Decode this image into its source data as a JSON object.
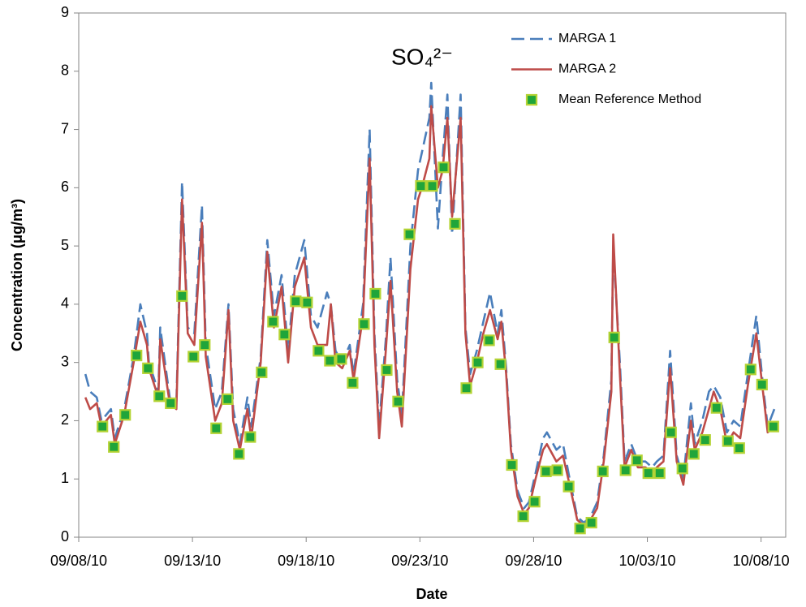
{
  "chart_data": {
    "type": "line",
    "title": "SO₄²⁻",
    "x_label": "Date",
    "y_label": "Concentration (μg/m³)",
    "xlim": [
      "09/08/10 00:00",
      "10/09/10 02:00"
    ],
    "xticks": [
      "09/08/10",
      "09/13/10",
      "09/18/10",
      "09/23/10",
      "09/28/10",
      "10/03/10",
      "10/08/10"
    ],
    "ylim": [
      0,
      9
    ],
    "yticks": [
      0,
      1,
      2,
      3,
      4,
      5,
      6,
      7,
      8,
      9
    ],
    "grid": false,
    "legend": "top-right",
    "x": [
      "09/08/10 07:00",
      "09/08/10 12:00",
      "09/08/10 19:00",
      "09/09/10 00:00",
      "09/09/10 10:00",
      "09/09/10 14:00",
      "09/10/10 00:00",
      "09/10/10 10:00",
      "09/10/10 17:00",
      "09/11/10 00:00",
      "09/11/10 02:00",
      "09/11/10 12:00",
      "09/11/10 14:00",
      "09/12/10 00:00",
      "09/12/10 07:00",
      "09/12/10 13:00",
      "09/12/10 19:00",
      "09/13/10 02:00",
      "09/13/10 10:00",
      "09/13/10 14:00",
      "09/14/10 00:00",
      "09/14/10 07:00",
      "09/14/10 14:00",
      "09/14/10 19:00",
      "09/15/10 02:00",
      "09/15/10 10:00",
      "09/15/10 14:00",
      "09/16/10 00:00",
      "09/16/10 07:00",
      "09/16/10 14:00",
      "09/16/10 22:00",
      "09/17/10 05:00",
      "09/17/10 12:00",
      "09/17/10 22:00",
      "09/18/10 05:00",
      "09/18/10 12:00",
      "09/18/10 22:00",
      "09/19/10 02:00",
      "09/19/10 07:00",
      "09/19/10 14:00",
      "09/19/10 22:00",
      "09/20/10 02:00",
      "09/20/10 12:00",
      "09/20/10 19:00",
      "09/21/10 00:00",
      "09/21/10 05:00",
      "09/21/10 12:00",
      "09/21/10 17:00",
      "09/22/10 00:00",
      "09/22/10 05:00",
      "09/22/10 14:00",
      "09/22/10 22:00",
      "09/23/10 02:00",
      "09/23/10 10:00",
      "09/23/10 12:00",
      "09/23/10 19:00",
      "09/24/10 00:00",
      "09/24/10 05:00",
      "09/24/10 10:00",
      "09/24/10 19:00",
      "09/25/10 00:00",
      "09/25/10 05:00",
      "09/25/10 12:00",
      "09/25/10 19:00",
      "09/26/10 02:00",
      "09/26/10 10:00",
      "09/26/10 14:00",
      "09/26/10 19:00",
      "09/27/10 00:00",
      "09/27/10 07:00",
      "09/27/10 14:00",
      "09/27/10 19:00",
      "09/28/10 02:00",
      "09/28/10 10:00",
      "09/28/10 14:00",
      "09/29/10 00:00",
      "09/29/10 07:00",
      "09/29/10 14:00",
      "09/29/10 22:00",
      "09/30/10 05:00",
      "09/30/10 12:00",
      "09/30/10 19:00",
      "10/01/10 02:00",
      "10/01/10 10:00",
      "10/01/10 12:00",
      "10/01/10 19:00",
      "10/02/10 00:00",
      "10/02/10 07:00",
      "10/02/10 14:00",
      "10/02/10 22:00",
      "10/03/10 05:00",
      "10/03/10 10:00",
      "10/03/10 17:00",
      "10/04/10 00:00",
      "10/04/10 07:00",
      "10/04/10 14:00",
      "10/04/10 22:00",
      "10/05/10 02:00",
      "10/05/10 10:00",
      "10/05/10 17:00",
      "10/05/10 22:00",
      "10/06/10 05:00",
      "10/06/10 12:00",
      "10/06/10 19:00",
      "10/07/10 02:00",
      "10/07/10 10:00",
      "10/07/10 19:00",
      "10/08/10 02:00",
      "10/08/10 07:00",
      "10/08/10 14:00"
    ],
    "series": [
      {
        "name": "MARGA 1",
        "color": "#4a7ebb",
        "style": "dashed",
        "values": [
          2.8,
          2.5,
          2.4,
          2.0,
          2.2,
          1.7,
          2.2,
          3.1,
          4.0,
          3.5,
          3.0,
          2.5,
          3.6,
          2.4,
          2.3,
          6.1,
          3.6,
          3.5,
          5.7,
          3.3,
          2.2,
          2.5,
          4.0,
          2.2,
          1.6,
          2.4,
          1.9,
          3.1,
          5.1,
          3.8,
          4.5,
          3.2,
          4.5,
          5.1,
          3.8,
          3.6,
          4.2,
          4.0,
          3.2,
          3.0,
          3.3,
          2.8,
          4.0,
          7.0,
          3.5,
          1.9,
          3.4,
          4.8,
          2.7,
          2.1,
          5.0,
          6.3,
          6.6,
          7.2,
          7.8,
          5.3,
          6.5,
          7.6,
          5.2,
          7.6,
          3.6,
          2.8,
          3.2,
          3.7,
          4.2,
          3.5,
          3.9,
          2.9,
          1.6,
          0.8,
          0.5,
          0.6,
          1.1,
          1.7,
          1.8,
          1.5,
          1.6,
          1.0,
          0.35,
          0.25,
          0.35,
          0.6,
          1.4,
          2.7,
          5.0,
          3.0,
          1.3,
          1.6,
          1.3,
          1.3,
          1.2,
          1.3,
          1.4,
          3.2,
          1.4,
          1.0,
          2.3,
          1.6,
          2.0,
          2.5,
          2.6,
          2.4,
          1.8,
          2.0,
          1.9,
          2.8,
          3.8,
          2.6,
          1.9,
          2.2
        ]
      },
      {
        "name": "MARGA 2",
        "color": "#be4b48",
        "style": "solid",
        "values": [
          2.4,
          2.2,
          2.3,
          1.9,
          2.1,
          1.6,
          2.1,
          3.0,
          3.7,
          3.3,
          2.9,
          2.4,
          3.4,
          2.3,
          2.2,
          5.8,
          3.5,
          3.3,
          5.4,
          3.1,
          2.0,
          2.3,
          3.9,
          2.0,
          1.5,
          2.2,
          1.7,
          3.0,
          4.9,
          3.6,
          4.3,
          3.0,
          4.3,
          4.8,
          3.6,
          3.3,
          3.3,
          4.0,
          3.0,
          2.9,
          3.2,
          2.7,
          3.8,
          6.5,
          3.3,
          1.7,
          3.2,
          4.4,
          2.5,
          1.9,
          4.6,
          5.8,
          6.0,
          6.5,
          7.4,
          6.0,
          6.3,
          7.2,
          5.5,
          7.2,
          3.5,
          2.6,
          3.0,
          3.5,
          3.9,
          3.4,
          3.7,
          2.8,
          1.5,
          0.7,
          0.4,
          0.5,
          1.0,
          1.5,
          1.6,
          1.3,
          1.4,
          0.9,
          0.3,
          0.2,
          0.3,
          0.5,
          1.3,
          2.5,
          5.2,
          2.8,
          1.2,
          1.5,
          1.2,
          1.2,
          1.1,
          1.2,
          1.3,
          2.9,
          1.3,
          0.9,
          2.0,
          1.5,
          1.8,
          2.2,
          2.5,
          2.2,
          1.6,
          1.8,
          1.7,
          2.6,
          3.5,
          2.5,
          1.8,
          1.9
        ]
      },
      {
        "name": "Mean Reference Method",
        "color": "#1fa53a",
        "edge_color": "#b4d334",
        "marker": "square",
        "x": [
          "09/09/10 01:00",
          "09/09/10 13:00",
          "09/10/10 01:00",
          "09/10/10 13:00",
          "09/11/10 01:00",
          "09/11/10 13:00",
          "09/12/10 01:00",
          "09/12/10 13:00",
          "09/13/10 01:00",
          "09/13/10 13:00",
          "09/14/10 01:00",
          "09/14/10 13:00",
          "09/15/10 01:00",
          "09/15/10 13:00",
          "09/16/10 01:00",
          "09/16/10 13:00",
          "09/17/10 01:00",
          "09/17/10 13:00",
          "09/18/10 01:00",
          "09/18/10 13:00",
          "09/19/10 01:00",
          "09/19/10 13:00",
          "09/20/10 01:00",
          "09/20/10 13:00",
          "09/21/10 01:00",
          "09/21/10 13:00",
          "09/22/10 01:00",
          "09/22/10 13:00",
          "09/23/10 01:00",
          "09/23/10 13:00",
          "09/24/10 01:00",
          "09/24/10 13:00",
          "09/25/10 01:00",
          "09/25/10 13:00",
          "09/26/10 01:00",
          "09/26/10 13:00",
          "09/27/10 01:00",
          "09/27/10 13:00",
          "09/28/10 01:00",
          "09/28/10 13:00",
          "09/29/10 01:00",
          "09/29/10 13:00",
          "09/30/10 01:00",
          "09/30/10 13:00",
          "10/01/10 01:00",
          "10/01/10 13:00",
          "10/02/10 01:00",
          "10/02/10 13:00",
          "10/03/10 01:00",
          "10/03/10 13:00",
          "10/04/10 01:00",
          "10/04/10 13:00",
          "10/05/10 01:00",
          "10/05/10 13:00",
          "10/06/10 01:00",
          "10/06/10 13:00",
          "10/07/10 01:00",
          "10/07/10 13:00",
          "10/08/10 01:00",
          "10/08/10 13:00"
        ],
        "values": [
          1.9,
          1.55,
          2.1,
          3.12,
          2.9,
          2.42,
          2.3,
          4.14,
          3.1,
          3.3,
          1.87,
          2.37,
          1.43,
          1.72,
          2.83,
          3.7,
          3.48,
          4.05,
          4.03,
          3.2,
          3.03,
          3.06,
          2.65,
          3.66,
          4.18,
          2.87,
          2.33,
          5.2,
          6.03,
          6.03,
          6.35,
          5.38,
          2.56,
          3.0,
          3.38,
          2.97,
          1.24,
          0.36,
          0.61,
          1.13,
          1.15,
          0.87,
          0.15,
          0.25,
          1.13,
          3.43,
          1.15,
          1.32,
          1.1,
          1.1,
          1.8,
          1.18,
          1.43,
          1.67,
          2.22,
          1.65,
          1.53,
          2.88,
          2.62,
          1.9
        ]
      }
    ]
  }
}
